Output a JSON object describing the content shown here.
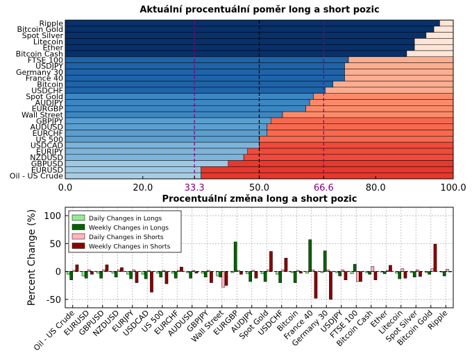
{
  "chart_data": [
    {
      "type": "bar",
      "orientation": "horizontal",
      "stacked": true,
      "title": "Aktuální procentuální poměr long a short pozic",
      "xlim": [
        0,
        100
      ],
      "xticks": [
        "0.0",
        "20.0",
        "33.3",
        "50.0",
        "66.6",
        "80.0",
        "100.0"
      ],
      "xtick_values": [
        0,
        20,
        33.3,
        50,
        66.6,
        80,
        100
      ],
      "highlight_ticks": [
        "33.3",
        "66.6"
      ],
      "highlight_color": "#800080",
      "reference_lines": [
        33.3,
        50,
        66.6
      ],
      "categories": [
        "Ripple",
        "Bitcoin Gold",
        "Spot Silver",
        "Litecoin",
        "Ether",
        "Bitcoin Cash",
        "FTSE 100",
        "USDJPY",
        "Germany 30",
        "France 40",
        "Bitcoin",
        "USDCHF",
        "Spot Gold",
        "AUDJPY",
        "EURGBP",
        "Wall Street",
        "GBPJPY",
        "AUDUSD",
        "EURCHF",
        "US 500",
        "USDCAD",
        "EURJPY",
        "NZDUSD",
        "GBPUSD",
        "EURUSD",
        "Oil - US Crude"
      ],
      "long_values": [
        96.5,
        95,
        93,
        90,
        90,
        88,
        73,
        72,
        72,
        72,
        69,
        67,
        64,
        63,
        62,
        56,
        53,
        52,
        52,
        50,
        50,
        47,
        46,
        42,
        35,
        35
      ],
      "long_colors": [
        "#08306b",
        "#08306b",
        "#08306b",
        "#08306b",
        "#08306b",
        "#08306b",
        "#1f63a8",
        "#1f63a8",
        "#1f63a8",
        "#1f63a8",
        "#1f63a8",
        "#1f63a8",
        "#3c86c2",
        "#3c86c2",
        "#3c86c2",
        "#3c86c2",
        "#5a9fcf",
        "#5a9fcf",
        "#5a9fcf",
        "#5a9fcf",
        "#7fb4da",
        "#7fb4da",
        "#7fb4da",
        "#9fc9e3",
        "#9fc9e3",
        "#a8cde5"
      ],
      "short_colors": [
        "#fde6d8",
        "#fde6d8",
        "#fde6d8",
        "#fde6d8",
        "#fde6d8",
        "#fde6d8",
        "#fcae91",
        "#fcae91",
        "#fcae91",
        "#fcae91",
        "#fcae91",
        "#fcae91",
        "#fb8a6a",
        "#fb8a6a",
        "#fb8a6a",
        "#fb8a6a",
        "#f6694f",
        "#f6694f",
        "#f6694f",
        "#f6694f",
        "#ef4a3b",
        "#ef4a3b",
        "#ef4a3b",
        "#e6382d",
        "#e6382d",
        "#e6382d"
      ]
    },
    {
      "type": "bar",
      "title": "Procentuální změna long a short pozic",
      "ylabel": "Percent Change (%)",
      "ylim": [
        -65,
        115
      ],
      "yticks": [
        100,
        50,
        0,
        -50
      ],
      "grid": true,
      "legend": "top-left",
      "categories": [
        "Oil - US Crude",
        "EURUSD",
        "GBPUSD",
        "NZDUSD",
        "EURJPY",
        "USDCAD",
        "US 500",
        "EURCHF",
        "AUDUSD",
        "GBPJPY",
        "Wall Street",
        "EURGBP",
        "AUDJPY",
        "Spot Gold",
        "USDCHF",
        "Bitcoin",
        "France 40",
        "Germany 30",
        "USDJPY",
        "FTSE 100",
        "Bitcoin Cash",
        "Ether",
        "Litecoin",
        "Spot Silver",
        "Bitcoin Gold",
        "Ripple"
      ],
      "series": [
        {
          "name": "Daily Changes in Longs",
          "color": "#90ee90",
          "values": [
            -5,
            -8,
            -3,
            -3,
            -5,
            -5,
            -3,
            -3,
            -2,
            -3,
            -8,
            -2,
            -4,
            -4,
            -5,
            -2,
            -3,
            -2,
            -2,
            -4,
            -2,
            -1,
            -3,
            -2,
            -2,
            -1
          ]
        },
        {
          "name": "Weekly Changes in Longs",
          "color": "#006400",
          "values": [
            -15,
            -12,
            -12,
            -10,
            -13,
            -13,
            -10,
            -12,
            -12,
            -10,
            -10,
            53,
            -18,
            -18,
            -20,
            -20,
            57,
            37,
            -8,
            13,
            -5,
            -4,
            -13,
            -10,
            -5,
            -8
          ]
        },
        {
          "name": "Daily Changes in Shorts",
          "color": "#ffb6c1",
          "values": [
            2,
            3,
            3,
            3,
            3,
            2,
            2,
            2,
            2,
            2,
            -28,
            2,
            2,
            3,
            3,
            2,
            3,
            3,
            3,
            -18,
            9,
            2,
            5,
            3,
            5,
            4
          ]
        },
        {
          "name": "Weekly Changes in Shorts",
          "color": "#8b0000",
          "values": [
            12,
            -5,
            12,
            7,
            -20,
            -37,
            -22,
            8,
            -3,
            -20,
            -25,
            -5,
            -12,
            36,
            24,
            -3,
            -48,
            -50,
            -15,
            -18,
            -15,
            11,
            -12,
            -9,
            49,
            0
          ]
        }
      ]
    }
  ]
}
